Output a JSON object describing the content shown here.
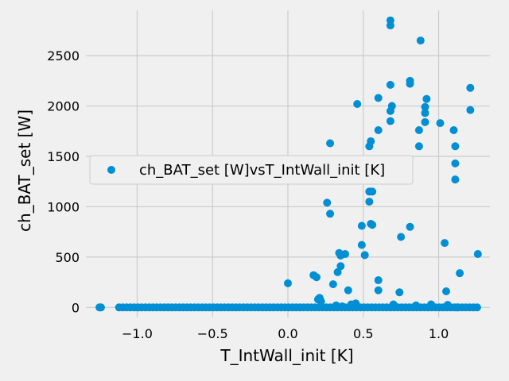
{
  "chart_data": {
    "type": "scatter",
    "title": "",
    "xlabel": "T_IntWall_init [K]",
    "ylabel": "ch_BAT_set [W]",
    "xlim": [
      -1.34,
      1.34
    ],
    "ylim": [
      -100,
      2950
    ],
    "xticks": [
      -1.0,
      -0.5,
      0.0,
      0.5,
      1.0
    ],
    "xtick_labels": [
      "−1.0",
      "−0.5",
      "0.0",
      "0.5",
      "1.0"
    ],
    "yticks": [
      0,
      500,
      1000,
      1500,
      2000,
      2500
    ],
    "ytick_labels": [
      "0",
      "500",
      "1000",
      "1500",
      "2000",
      "2500"
    ],
    "grid": true,
    "legend_position": "center-left",
    "colors": {
      "series": "#008fd5",
      "background": "#f0f0f0",
      "grid": "#cbcbcb"
    },
    "series": [
      {
        "name": "ch_BAT_set [W]vsT_IntWall_init [K]",
        "x": [
          0.0,
          0.17,
          0.19,
          0.21,
          0.26,
          0.28,
          0.28,
          0.3,
          0.33,
          0.34,
          0.35,
          0.35,
          0.38,
          0.4,
          0.42,
          0.46,
          0.49,
          0.49,
          0.51,
          0.54,
          0.54,
          0.54,
          0.55,
          0.55,
          0.56,
          0.56,
          0.6,
          0.6,
          0.6,
          0.6,
          0.68,
          0.68,
          0.68,
          0.68,
          0.68,
          0.69,
          0.74,
          0.75,
          0.81,
          0.81,
          0.81,
          0.87,
          0.87,
          0.88,
          0.91,
          0.91,
          0.91,
          0.92,
          1.01,
          1.04,
          1.05,
          1.1,
          1.11,
          1.11,
          1.11,
          1.12,
          1.14,
          1.21,
          1.21,
          1.26,
          0.2,
          0.22,
          0.32,
          0.36,
          0.45,
          0.7,
          0.85,
          0.95,
          1.06
        ],
        "y": [
          240,
          320,
          300,
          95,
          1040,
          930,
          1630,
          230,
          350,
          540,
          515,
          410,
          530,
          170,
          30,
          2020,
          810,
          620,
          520,
          1050,
          1150,
          1600,
          830,
          1650,
          820,
          1150,
          170,
          270,
          1760,
          2080,
          1950,
          2210,
          2800,
          2850,
          1850,
          2000,
          150,
          700,
          800,
          2220,
          2250,
          1600,
          1760,
          2650,
          1840,
          1930,
          1990,
          2070,
          1830,
          640,
          160,
          1760,
          1600,
          1430,
          1270,
          0,
          340,
          1960,
          2180,
          530,
          80,
          60,
          20,
          10,
          40,
          30,
          20,
          30,
          25
        ]
      }
    ],
    "zero_band": {
      "x_start": -1.12,
      "x_end": 1.26,
      "x_outliers": [
        -1.25,
        -1.24
      ],
      "y": 0
    }
  }
}
